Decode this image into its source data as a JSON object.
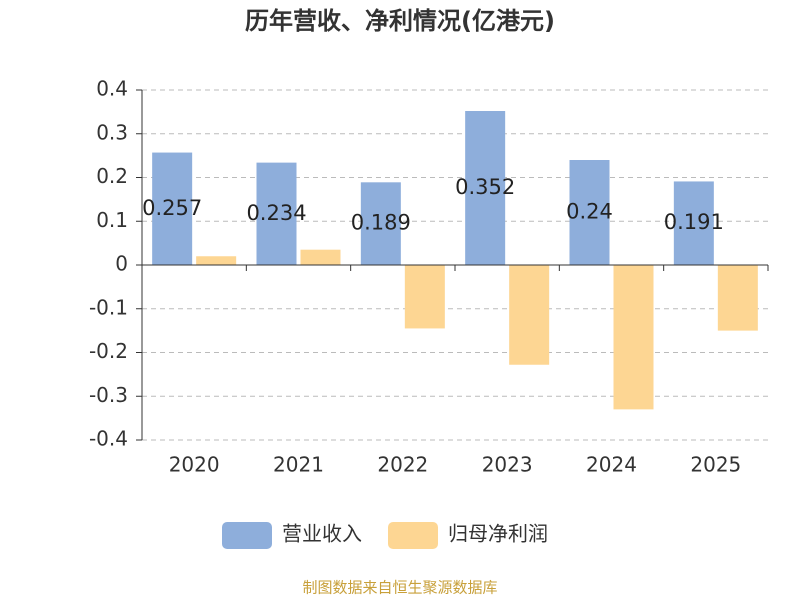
{
  "chart_data": {
    "type": "bar",
    "title": "历年营收、净利情况(亿港元)",
    "categories": [
      "2020",
      "2021",
      "2022",
      "2023",
      "2024",
      "2025"
    ],
    "series": [
      {
        "name": "营业收入",
        "color": "#8eaedb",
        "values": [
          0.257,
          0.234,
          0.189,
          0.352,
          0.24,
          0.191
        ],
        "labels": true
      },
      {
        "name": "归母净利润",
        "color": "#fdd693",
        "values": [
          0.02,
          0.035,
          -0.145,
          -0.228,
          -0.33,
          -0.15
        ],
        "labels": false
      }
    ],
    "ylim": [
      -0.4,
      0.4
    ],
    "yticks": [
      -0.4,
      -0.3,
      -0.2,
      -0.1,
      0,
      0.1,
      0.2,
      0.3,
      0.4
    ],
    "grid": true,
    "legend": "bottom",
    "source": "制图数据来自恒生聚源数据库"
  }
}
